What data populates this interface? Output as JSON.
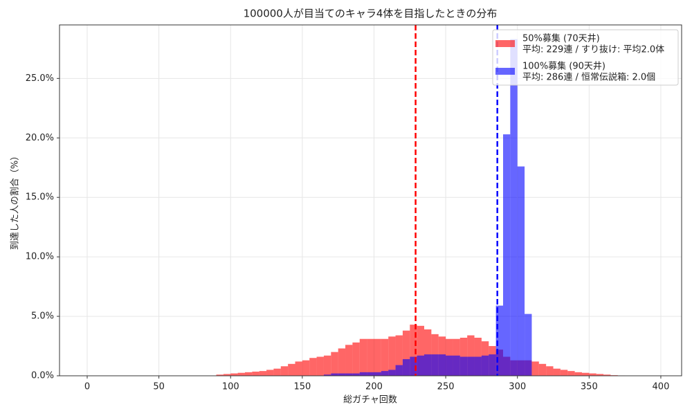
{
  "chart_data": {
    "type": "histogram",
    "title": "100000人が目当てのキャラ4体を目指したときの分布",
    "xlabel": "総ガチャ回数",
    "ylabel": "到達した人の割合（%）",
    "bins": [
      90,
      95,
      100,
      105,
      110,
      115,
      120,
      125,
      130,
      135,
      140,
      145,
      150,
      155,
      160,
      165,
      170,
      175,
      180,
      185,
      190,
      195,
      200,
      205,
      210,
      215,
      220,
      225,
      230,
      235,
      240,
      245,
      250,
      255,
      260,
      265,
      270,
      275,
      280,
      285,
      290,
      295,
      300,
      305,
      310,
      315,
      320,
      325,
      330,
      335,
      340,
      345,
      350,
      355,
      360,
      365,
      370,
      375,
      380
    ],
    "series": [
      {
        "name": "50%募集 (70天井)",
        "detail": "平均: 229連 / すり抜け: 平均2.0体",
        "color": "#ff0000",
        "values": [
          0.1,
          0.15,
          0.2,
          0.25,
          0.3,
          0.35,
          0.4,
          0.5,
          0.6,
          0.8,
          1.0,
          1.2,
          1.3,
          1.5,
          1.6,
          1.7,
          2.0,
          2.3,
          2.6,
          2.8,
          3.1,
          3.1,
          3.1,
          3.1,
          3.3,
          3.4,
          3.8,
          4.3,
          4.2,
          3.9,
          3.5,
          3.3,
          3.1,
          3.1,
          3.2,
          3.4,
          3.2,
          2.9,
          2.5,
          2.2,
          1.6,
          1.3,
          1.3,
          1.3,
          1.2,
          1.0,
          0.8,
          0.6,
          0.5,
          0.4,
          0.3,
          0.25,
          0.2,
          0.15,
          0.1,
          0.05,
          0.03,
          0
        ]
      },
      {
        "name": "100%募集 (90天井)",
        "detail": "平均: 286連 / 恒常伝説箱: 2.0個",
        "color": "#0000ff",
        "values": [
          0,
          0,
          0,
          0,
          0,
          0,
          0,
          0,
          0,
          0,
          0,
          0,
          0,
          0,
          0,
          0.1,
          0.2,
          0.2,
          0.2,
          0.2,
          0.3,
          0.3,
          0.3,
          0.4,
          0.5,
          0.9,
          1.4,
          1.6,
          1.7,
          1.8,
          1.8,
          1.8,
          1.7,
          1.7,
          1.6,
          1.6,
          1.6,
          1.7,
          1.8,
          5.9,
          20.3,
          28.3,
          17.6,
          5.2,
          0,
          0,
          0,
          0,
          0,
          0,
          0,
          0,
          0,
          0,
          0,
          0,
          0,
          0
        ]
      }
    ],
    "vlines": [
      {
        "x": 229,
        "color": "#ff0000"
      },
      {
        "x": 286,
        "color": "#0000ff"
      }
    ],
    "xlim": [
      -19.3,
      414.5
    ],
    "ylim": [
      0,
      29.5
    ],
    "xticks": [
      0,
      50,
      100,
      150,
      200,
      250,
      300,
      350,
      400
    ],
    "yticks": [
      {
        "value": 0,
        "label": "0.0%"
      },
      {
        "value": 5,
        "label": "5.0%"
      },
      {
        "value": 10,
        "label": "10.0%"
      },
      {
        "value": 15,
        "label": "15.0%"
      },
      {
        "value": 20,
        "label": "20.0%"
      },
      {
        "value": 25,
        "label": "25.0%"
      }
    ],
    "grid": true,
    "legend": "upper right"
  }
}
